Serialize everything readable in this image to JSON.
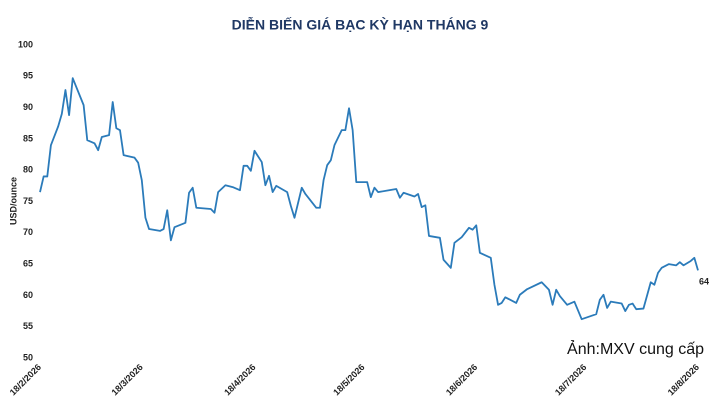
{
  "chart_data": {
    "type": "line",
    "title": "DIỄN BIẾN GIÁ BẠC KỲ HẠN THÁNG 9",
    "y_label": "USD/ounce",
    "annotation": "Ảnh:MXV cung cấp",
    "color": "#2b7bba",
    "x": [
      "2026-02-18",
      "2026-02-19",
      "2026-02-20",
      "2026-02-21",
      "2026-02-23",
      "2026-02-24",
      "2026-02-25",
      "2026-02-26",
      "2026-02-27",
      "2026-03-02",
      "2026-03-03",
      "2026-03-05",
      "2026-03-06",
      "2026-03-07",
      "2026-03-09",
      "2026-03-10",
      "2026-03-11",
      "2026-03-12",
      "2026-03-13",
      "2026-03-16",
      "2026-03-17",
      "2026-03-18",
      "2026-03-19",
      "2026-03-20",
      "2026-03-23",
      "2026-03-24",
      "2026-03-25",
      "2026-03-26",
      "2026-03-27",
      "2026-03-30",
      "2026-03-31",
      "2026-04-01",
      "2026-04-02",
      "2026-04-06",
      "2026-04-07",
      "2026-04-08",
      "2026-04-10",
      "2026-04-12",
      "2026-04-14",
      "2026-04-15",
      "2026-04-16",
      "2026-04-17",
      "2026-04-18",
      "2026-04-20",
      "2026-04-21",
      "2026-04-22",
      "2026-04-23",
      "2026-04-24",
      "2026-04-27",
      "2026-04-28",
      "2026-04-29",
      "2026-05-01",
      "2026-05-02",
      "2026-05-05",
      "2026-05-06",
      "2026-05-07",
      "2026-05-08",
      "2026-05-09",
      "2026-05-10",
      "2026-05-12",
      "2026-05-13",
      "2026-05-14",
      "2026-05-15",
      "2026-05-16",
      "2026-05-19",
      "2026-05-20",
      "2026-05-21",
      "2026-05-22",
      "2026-05-25",
      "2026-05-27",
      "2026-05-28",
      "2026-05-29",
      "2026-06-01",
      "2026-06-02",
      "2026-06-03",
      "2026-06-04",
      "2026-06-05",
      "2026-06-08",
      "2026-06-09",
      "2026-06-11",
      "2026-06-12",
      "2026-06-14",
      "2026-06-16",
      "2026-06-17",
      "2026-06-18",
      "2026-06-19",
      "2026-06-22",
      "2026-06-23",
      "2026-06-24",
      "2026-06-25",
      "2026-06-26",
      "2026-06-29",
      "2026-06-30",
      "2026-07-02",
      "2026-07-06",
      "2026-07-08",
      "2026-07-09",
      "2026-07-10",
      "2026-07-11",
      "2026-07-13",
      "2026-07-15",
      "2026-07-17",
      "2026-07-20",
      "2026-07-21",
      "2026-07-22",
      "2026-07-23",
      "2026-07-24",
      "2026-07-25",
      "2026-07-28",
      "2026-07-29",
      "2026-07-30",
      "2026-07-31",
      "2026-08-01",
      "2026-08-03",
      "2026-08-05",
      "2026-08-06",
      "2026-08-07",
      "2026-08-08",
      "2026-08-10",
      "2026-08-12",
      "2026-08-13",
      "2026-08-14",
      "2026-08-16",
      "2026-08-17",
      "2026-08-18"
    ],
    "values": [
      76.5,
      79,
      79,
      84,
      87,
      89,
      92.8,
      88.8,
      94.7,
      90.4,
      84.8,
      84.3,
      83.2,
      85.3,
      85.6,
      90.9,
      86.7,
      86.4,
      82.4,
      82,
      81.2,
      78.4,
      72.4,
      70.6,
      70.3,
      70.6,
      73.6,
      68.8,
      70.9,
      71.6,
      76.4,
      77.2,
      74,
      73.8,
      73.2,
      76.5,
      77.6,
      77.3,
      76.8,
      80.7,
      80.7,
      79.9,
      83.1,
      81.3,
      77.6,
      79.1,
      76.5,
      77.5,
      76.5,
      74.3,
      72.4,
      77.2,
      76.2,
      74,
      74,
      78.4,
      80.8,
      81.6,
      84,
      86.4,
      86.4,
      89.9,
      86.4,
      78.1,
      78.1,
      75.7,
      77.2,
      76.5,
      76.8,
      77,
      75.6,
      76.4,
      75.8,
      76.2,
      74.1,
      74.4,
      69.5,
      69.2,
      65.7,
      64.4,
      68.4,
      69.3,
      70.8,
      70.5,
      71.2,
      66.8,
      66,
      61.7,
      58.5,
      58.8,
      59.7,
      58.8,
      60.1,
      61,
      62.1,
      60.9,
      58.5,
      60.9,
      59.9,
      58.5,
      59,
      56.2,
      56.8,
      57,
      59.3,
      60.1,
      58,
      59,
      58.7,
      57.5,
      58.5,
      58.7,
      57.8,
      57.9,
      62.1,
      61.7,
      63.6,
      64.4,
      65,
      64.8,
      65.3,
      64.8,
      65.5,
      66,
      64
    ],
    "xlim": [
      "2026-02-18",
      "2026-08-18"
    ],
    "xticks": [
      {
        "value": "2026-02-18",
        "label": "18/2/2026"
      },
      {
        "value": "2026-03-18",
        "label": "18/3/2026"
      },
      {
        "value": "2026-04-18",
        "label": "18/4/2026"
      },
      {
        "value": "2026-05-18",
        "label": "18/5/2026"
      },
      {
        "value": "2026-06-18",
        "label": "18/6/2026"
      },
      {
        "value": "2026-07-18",
        "label": "18/7/2026"
      },
      {
        "value": "2026-08-18",
        "label": "18/8/2026"
      }
    ],
    "ylim": [
      50,
      100
    ],
    "yticks": [
      50,
      55,
      60,
      65,
      70,
      75,
      80,
      85,
      90,
      95,
      100
    ]
  }
}
